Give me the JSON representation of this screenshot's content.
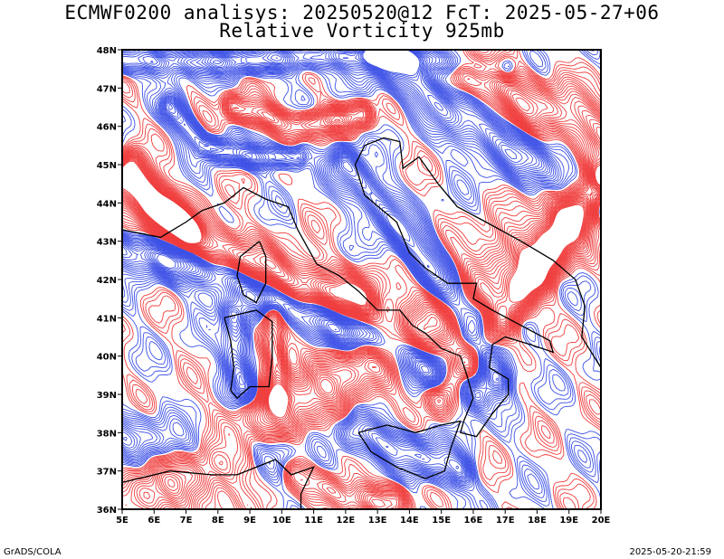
{
  "title_line1": "ECMWF0200 analisys: 20250520@12 FcT: 2025-05-27+06",
  "title_line2": "Relative Vorticity 925mb",
  "footer_left": "GrADS/COLA",
  "footer_right": "2025-05-20-21:59",
  "map": {
    "lon_range": [
      5,
      20
    ],
    "lat_range": [
      36,
      48
    ],
    "lon_ticks": [
      "5E",
      "6E",
      "7E",
      "8E",
      "9E",
      "10E",
      "11E",
      "12E",
      "13E",
      "14E",
      "15E",
      "16E",
      "17E",
      "18E",
      "19E",
      "20E"
    ],
    "lat_ticks": [
      "48N",
      "47N",
      "46N",
      "45N",
      "44N",
      "43N",
      "42N",
      "41N",
      "40N",
      "39N",
      "38N",
      "37N",
      "36N"
    ],
    "field": "Relative Vorticity 925mb",
    "colors": {
      "positive": "#f03c3c",
      "negative": "#3c50e6",
      "coastline": "#000000",
      "frame": "#000000"
    }
  }
}
